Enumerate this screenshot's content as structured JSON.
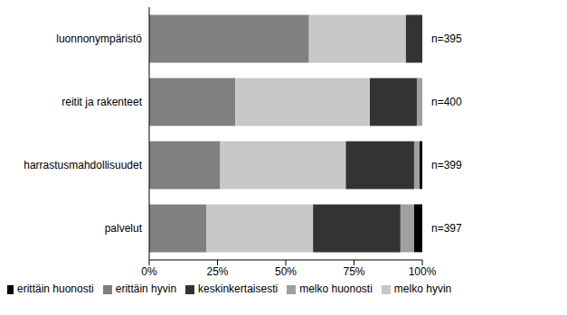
{
  "chart_data": {
    "type": "bar",
    "orientation": "horizontal",
    "stacked": true,
    "categories": [
      "luonnonympäristö",
      "reitit ja rakenteet",
      "harrastusmahdollisuudet",
      "palvelut"
    ],
    "n_labels": [
      "n=395",
      "n=400",
      "n=399",
      "n=397"
    ],
    "series": [
      {
        "name": "erittäin hyvin",
        "color": "#808080",
        "values": [
          58.5,
          31.5,
          26,
          21
        ]
      },
      {
        "name": "melko hyvin",
        "color": "#c8c8c8",
        "values": [
          35.5,
          49.3,
          46,
          39
        ]
      },
      {
        "name": "keskinkertaisesti",
        "color": "#333333",
        "values": [
          6,
          17.2,
          25,
          32
        ]
      },
      {
        "name": "melko huonosti",
        "color": "#a0a0a0",
        "values": [
          0,
          2,
          2,
          5
        ]
      },
      {
        "name": "erittäin huonosti",
        "color": "#000000",
        "values": [
          0,
          0,
          1,
          3
        ]
      }
    ],
    "xlim": [
      0,
      100
    ],
    "xticks": [
      {
        "value": 0,
        "label": "0%"
      },
      {
        "value": 25,
        "label": "25%"
      },
      {
        "value": 50,
        "label": "50%"
      },
      {
        "value": 75,
        "label": "75%"
      },
      {
        "value": 100,
        "label": "100%"
      }
    ],
    "grid": false,
    "legend": "bottom"
  }
}
